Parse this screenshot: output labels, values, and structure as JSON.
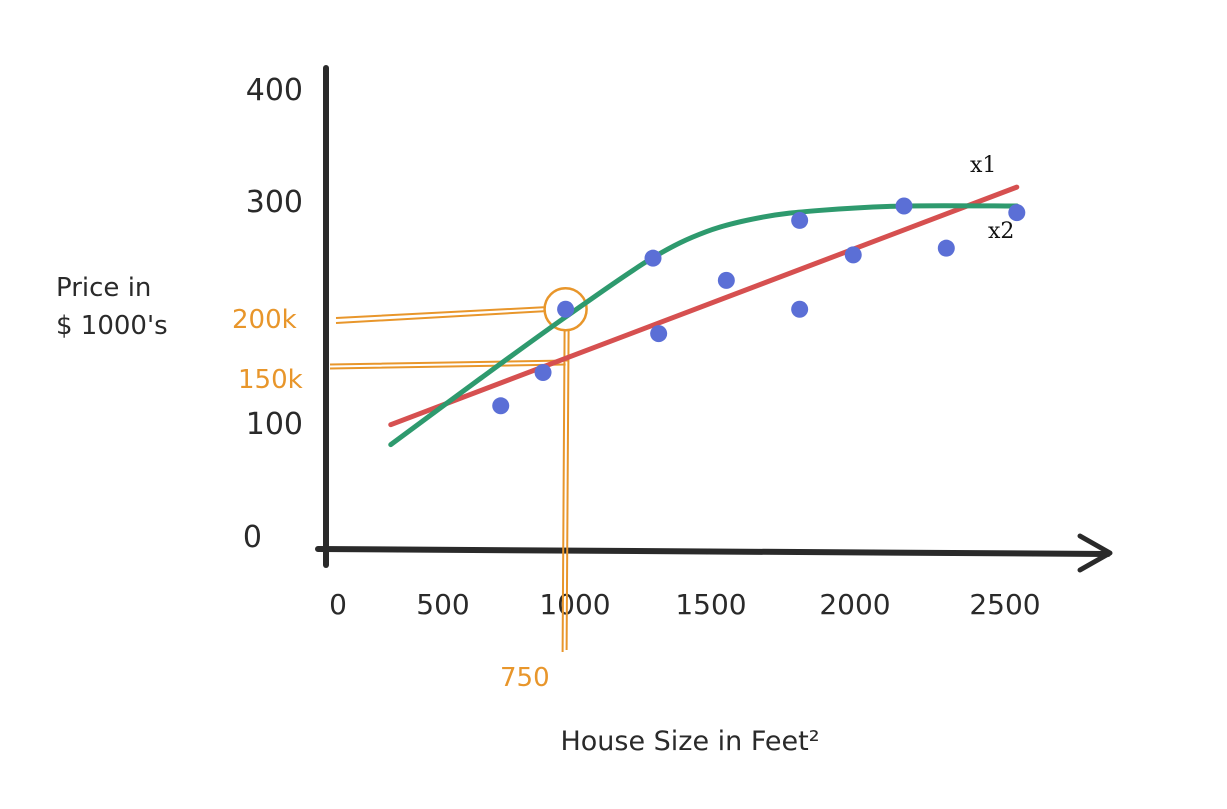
{
  "chart_data": {
    "type": "scatter",
    "title": "",
    "xlabel": "House Size in Feet²",
    "ylabel_lines": [
      "Price in",
      "$ 1000's"
    ],
    "x_ticks": [
      0,
      500,
      1000,
      1500,
      2000,
      2500
    ],
    "y_ticks": [
      0,
      100,
      300,
      400
    ],
    "xlim": [
      0,
      2800
    ],
    "ylim": [
      0,
      420
    ],
    "grid": false,
    "points": [
      {
        "x": 570,
        "y": 120
      },
      {
        "x": 720,
        "y": 150
      },
      {
        "x": 800,
        "y": 207
      },
      {
        "x": 1110,
        "y": 253
      },
      {
        "x": 1130,
        "y": 185
      },
      {
        "x": 1370,
        "y": 233
      },
      {
        "x": 1630,
        "y": 207
      },
      {
        "x": 1630,
        "y": 287
      },
      {
        "x": 1820,
        "y": 256
      },
      {
        "x": 2000,
        "y": 300
      },
      {
        "x": 2150,
        "y": 262
      },
      {
        "x": 2400,
        "y": 294
      }
    ],
    "series": [
      {
        "name": "x1",
        "color": "#d65050",
        "x": [
          180,
          2400
        ],
        "y": [
          103,
          317
        ]
      },
      {
        "name": "x2",
        "color": "#2e9a6e",
        "x": [
          180,
          500,
          800,
          1100,
          1300,
          1500,
          1700,
          2000,
          2400
        ],
        "y": [
          85,
          145,
          200,
          252,
          277,
          290,
          296,
          300,
          300
        ]
      }
    ],
    "annotations": {
      "x_marker": {
        "label": "750",
        "x": 750
      },
      "y_markers": [
        {
          "label": "200k",
          "y": 207
        },
        {
          "label": "150k",
          "y": 159
        }
      ],
      "highlight_point": {
        "x": 800,
        "y": 207
      }
    },
    "colors": {
      "axis": "#2a2a2a",
      "points": "#5b6fd6",
      "annotation": "#e8962b"
    }
  }
}
